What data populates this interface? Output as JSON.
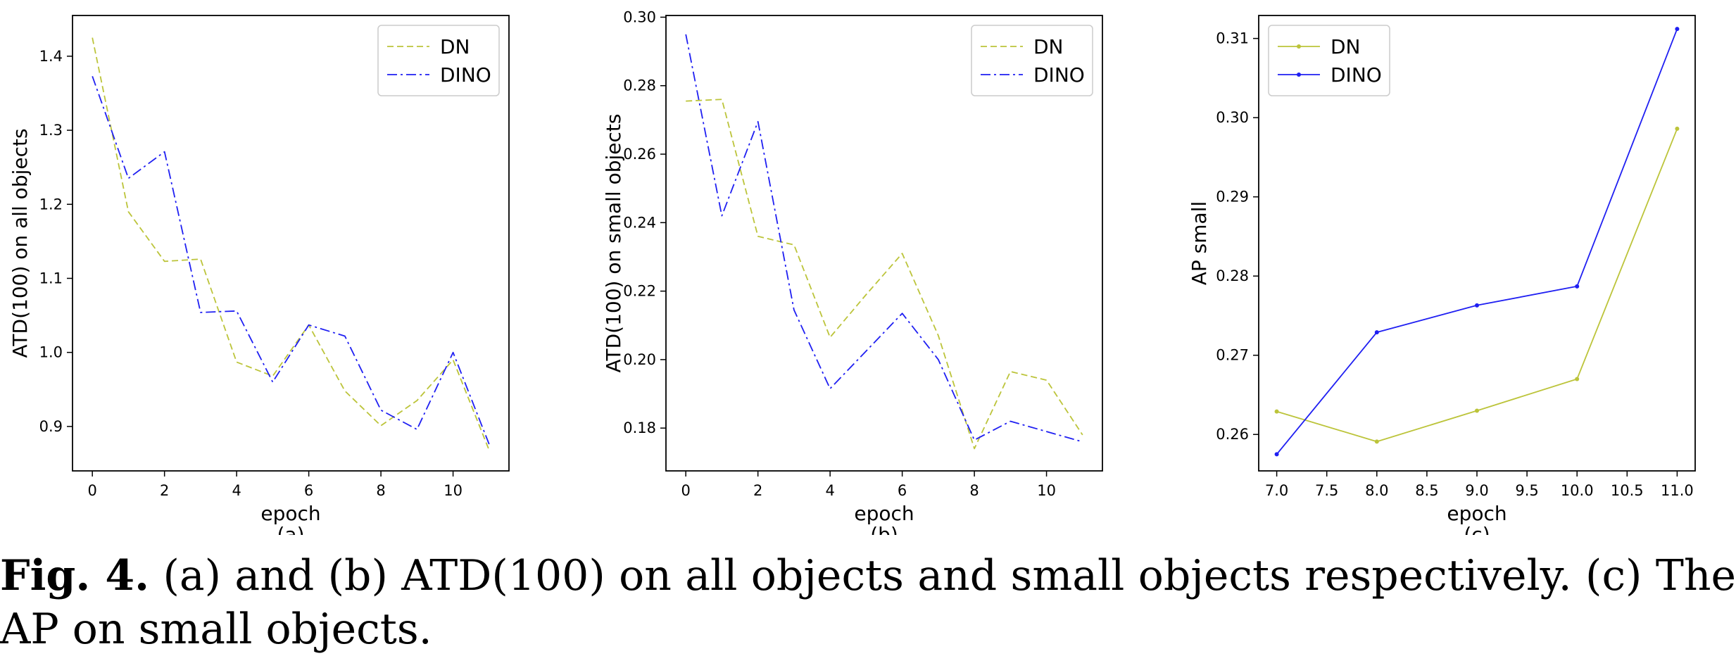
{
  "caption": {
    "label": "Fig. 4.",
    "text": "(a) and (b) ATD(100) on all objects and small objects respectively. (c) The AP on small objects."
  },
  "colors": {
    "DN": "#bcc43a",
    "DINO": "#1f1ff2"
  },
  "chart_data": [
    {
      "type": "line",
      "panel_label": "(a)",
      "xlabel": "epoch",
      "ylabel": "ATD(100) on all objects",
      "x": [
        0,
        1,
        2,
        3,
        4,
        5,
        6,
        7,
        8,
        9,
        10,
        11
      ],
      "xlim": [
        -0.55,
        11.55
      ],
      "ylim": [
        0.84,
        1.455
      ],
      "xticks": [
        0,
        2,
        4,
        6,
        8,
        10
      ],
      "yticks": [
        0.9,
        1.0,
        1.1,
        1.2,
        1.3,
        1.4
      ],
      "xtick_labels": [
        "0",
        "2",
        "4",
        "6",
        "8",
        "10"
      ],
      "ytick_labels": [
        "0.9",
        "1.0",
        "1.1",
        "1.2",
        "1.3",
        "1.4"
      ],
      "legend_position": "upper right",
      "series": [
        {
          "name": "DN",
          "style": "dashed",
          "values": [
            1.425,
            1.19,
            1.123,
            1.126,
            0.987,
            0.968,
            1.037,
            0.948,
            0.901,
            0.935,
            0.99,
            0.868
          ]
        },
        {
          "name": "DINO",
          "style": "dashdot",
          "values": [
            1.373,
            1.235,
            1.271,
            1.054,
            1.056,
            0.96,
            1.037,
            1.022,
            0.922,
            0.896,
            1.0,
            0.876
          ]
        }
      ]
    },
    {
      "type": "line",
      "panel_label": "(b)",
      "xlabel": "epoch",
      "ylabel": "ATD(100) on small objects",
      "x": [
        0,
        1,
        2,
        3,
        4,
        5,
        6,
        7,
        8,
        9,
        10,
        11
      ],
      "xlim": [
        -0.55,
        11.55
      ],
      "ylim": [
        0.1675,
        0.3005
      ],
      "xticks": [
        0,
        2,
        4,
        6,
        8,
        10
      ],
      "yticks": [
        0.18,
        0.2,
        0.22,
        0.24,
        0.26,
        0.28,
        0.3
      ],
      "xtick_labels": [
        "0",
        "2",
        "4",
        "6",
        "8",
        "10"
      ],
      "ytick_labels": [
        "0.18",
        "0.20",
        "0.22",
        "0.24",
        "0.26",
        "0.28",
        "0.30"
      ],
      "legend_position": "upper right",
      "series": [
        {
          "name": "DN",
          "style": "dashed",
          "values": [
            0.2755,
            0.276,
            0.236,
            0.2335,
            0.2065,
            0.219,
            0.231,
            0.207,
            0.174,
            0.1965,
            0.194,
            0.178
          ]
        },
        {
          "name": "DINO",
          "style": "dashdot",
          "values": [
            0.295,
            0.242,
            0.2695,
            0.2145,
            0.1915,
            0.2025,
            0.2135,
            0.2,
            0.1765,
            0.182,
            0.179,
            0.176
          ]
        }
      ]
    },
    {
      "type": "line",
      "panel_label": "(c)",
      "xlabel": "epoch",
      "ylabel": "AP small",
      "x": [
        7.0,
        8.0,
        9.0,
        10.0,
        11.0
      ],
      "xlim": [
        6.82,
        11.18
      ],
      "ylim": [
        0.2554,
        0.3129
      ],
      "xticks": [
        7.0,
        7.5,
        8.0,
        8.5,
        9.0,
        9.5,
        10.0,
        10.5,
        11.0
      ],
      "yticks": [
        0.26,
        0.27,
        0.28,
        0.29,
        0.3,
        0.31
      ],
      "xtick_labels": [
        "7.0",
        "7.5",
        "8.0",
        "8.5",
        "9.0",
        "9.5",
        "10.0",
        "10.5",
        "11.0"
      ],
      "ytick_labels": [
        "0.26",
        "0.27",
        "0.28",
        "0.29",
        "0.30",
        "0.31"
      ],
      "legend_position": "upper left",
      "markers": true,
      "series": [
        {
          "name": "DN",
          "style": "solid",
          "values": [
            0.2629,
            0.2591,
            0.263,
            0.267,
            0.2986
          ]
        },
        {
          "name": "DINO",
          "style": "solid",
          "values": [
            0.2575,
            0.2729,
            0.2763,
            0.2787,
            0.3112
          ]
        }
      ]
    }
  ]
}
